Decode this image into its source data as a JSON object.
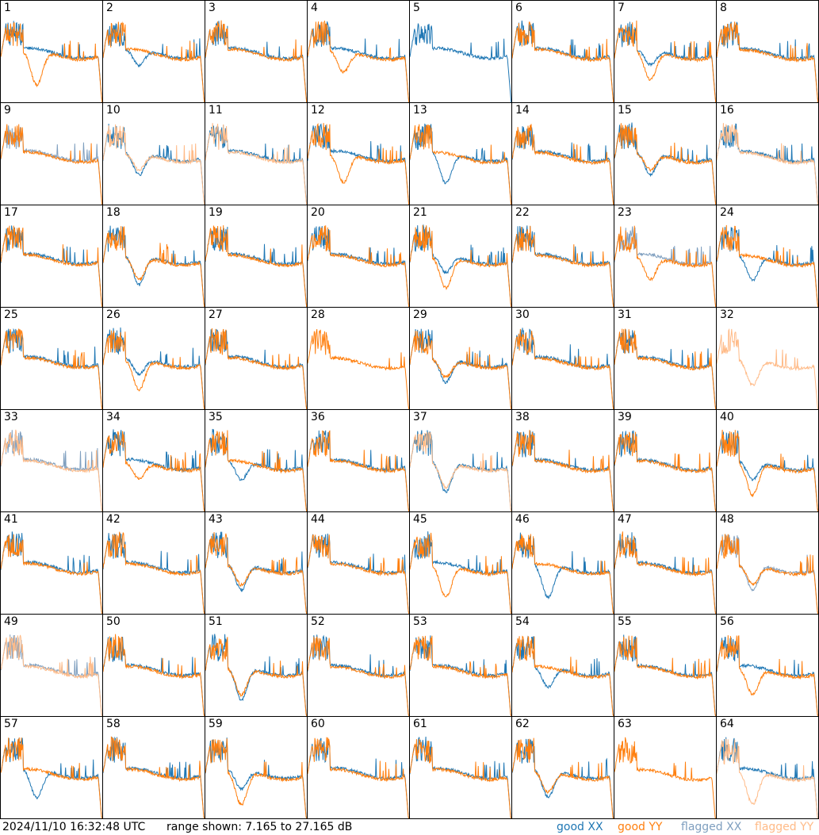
{
  "chart_data": {
    "type": "line",
    "panels": [
      "1",
      "2",
      "3",
      "4",
      "5",
      "6",
      "7",
      "8",
      "9",
      "10",
      "11",
      "12",
      "13",
      "14",
      "15",
      "16",
      "17",
      "18",
      "19",
      "20",
      "21",
      "22",
      "23",
      "24",
      "25",
      "26",
      "27",
      "28",
      "29",
      "30",
      "31",
      "32",
      "33",
      "34",
      "35",
      "36",
      "37",
      "38",
      "39",
      "40",
      "41",
      "42",
      "43",
      "44",
      "45",
      "46",
      "47",
      "48",
      "49",
      "50",
      "51",
      "52",
      "53",
      "54",
      "55",
      "56",
      "57",
      "58",
      "59",
      "60",
      "61",
      "62",
      "63",
      "64"
    ],
    "ylim": [
      7.165,
      27.165
    ],
    "grid": false,
    "legend_placement": "bottom-right",
    "series": [
      {
        "name": "good XX",
        "color": "#1f77b4"
      },
      {
        "name": "good YY",
        "color": "#ff7f0e"
      },
      {
        "name": "flagged XX",
        "color": "#7f9fbf"
      },
      {
        "name": "flagged YY",
        "color": "#ffbb88"
      }
    ],
    "panel_state": {
      "1": [
        "good",
        "good"
      ],
      "2": [
        "good",
        "good"
      ],
      "3": [
        "good",
        "good"
      ],
      "4": [
        "good",
        "good"
      ],
      "5": [
        "good",
        "none"
      ],
      "6": [
        "good",
        "good"
      ],
      "7": [
        "good",
        "good"
      ],
      "8": [
        "good",
        "good"
      ],
      "9": [
        "flagged",
        "good"
      ],
      "10": [
        "good",
        "flagged"
      ],
      "11": [
        "good",
        "flagged"
      ],
      "12": [
        "good",
        "good"
      ],
      "13": [
        "good",
        "good"
      ],
      "14": [
        "good",
        "good"
      ],
      "15": [
        "good",
        "good"
      ],
      "16": [
        "good",
        "flagged"
      ],
      "17": [
        "good",
        "good"
      ],
      "18": [
        "good",
        "good"
      ],
      "19": [
        "good",
        "good"
      ],
      "20": [
        "good",
        "good"
      ],
      "21": [
        "good",
        "good"
      ],
      "22": [
        "good",
        "good"
      ],
      "23": [
        "flagged",
        "good"
      ],
      "24": [
        "good",
        "good"
      ],
      "25": [
        "good",
        "good"
      ],
      "26": [
        "good",
        "good"
      ],
      "27": [
        "good",
        "good"
      ],
      "28": [
        "none",
        "good"
      ],
      "29": [
        "good",
        "good"
      ],
      "30": [
        "good",
        "good"
      ],
      "31": [
        "good",
        "good"
      ],
      "32": [
        "none",
        "flagged"
      ],
      "33": [
        "flagged",
        "flagged"
      ],
      "34": [
        "good",
        "good"
      ],
      "35": [
        "good",
        "good"
      ],
      "36": [
        "good",
        "good"
      ],
      "37": [
        "good",
        "flagged"
      ],
      "38": [
        "good",
        "good"
      ],
      "39": [
        "good",
        "good"
      ],
      "40": [
        "good",
        "good"
      ],
      "41": [
        "good",
        "good"
      ],
      "42": [
        "good",
        "good"
      ],
      "43": [
        "good",
        "good"
      ],
      "44": [
        "good",
        "good"
      ],
      "45": [
        "good",
        "good"
      ],
      "46": [
        "good",
        "good"
      ],
      "47": [
        "good",
        "good"
      ],
      "48": [
        "flagged",
        "good"
      ],
      "49": [
        "flagged",
        "flagged"
      ],
      "50": [
        "good",
        "good"
      ],
      "51": [
        "good",
        "good"
      ],
      "52": [
        "good",
        "good"
      ],
      "53": [
        "good",
        "good"
      ],
      "54": [
        "good",
        "good"
      ],
      "55": [
        "good",
        "good"
      ],
      "56": [
        "good",
        "good"
      ],
      "57": [
        "good",
        "good"
      ],
      "58": [
        "good",
        "good"
      ],
      "59": [
        "good",
        "good"
      ],
      "60": [
        "good",
        "good"
      ],
      "61": [
        "good",
        "good"
      ],
      "62": [
        "good",
        "good"
      ],
      "63": [
        "none",
        "good"
      ],
      "64": [
        "good",
        "flagged"
      ]
    }
  },
  "footer": {
    "timestamp": "2024/11/10 16:32:48 UTC",
    "range_text": "range shown: 7.165 to 27.165 dB",
    "legend": {
      "good_xx": "good XX",
      "good_yy": "good YY",
      "flagged_xx": "flagged XX",
      "flagged_yy": "flagged YY"
    }
  }
}
